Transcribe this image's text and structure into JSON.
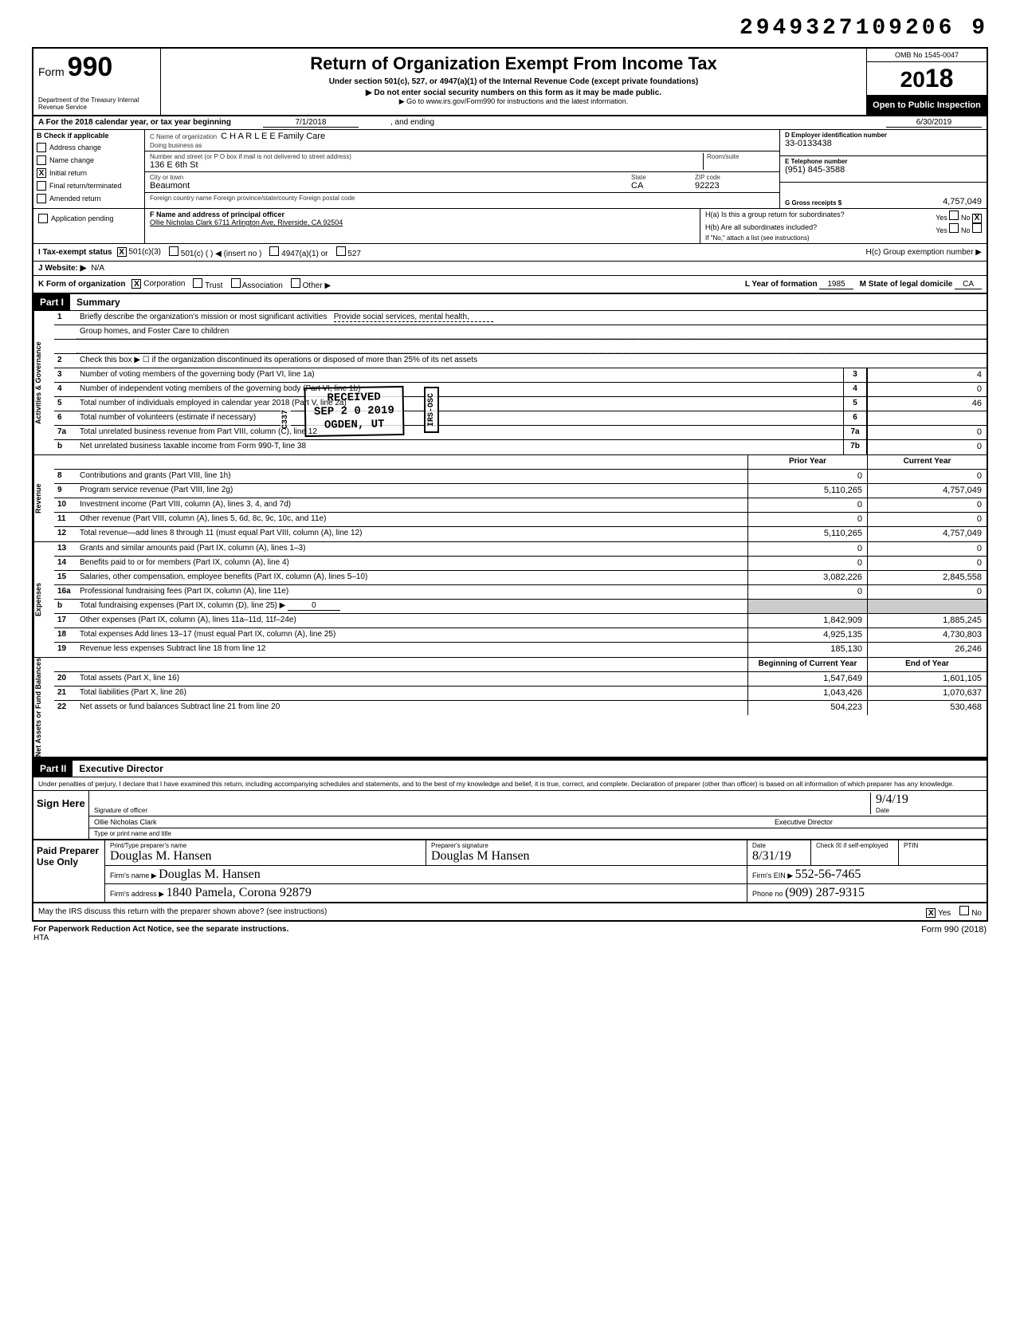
{
  "doc_id": "2949327109206 9",
  "header": {
    "form_prefix": "Form",
    "form_number": "990",
    "dept": "Department of the Treasury\nInternal Revenue Service",
    "title": "Return of Organization Exempt From Income Tax",
    "subtitle": "Under section 501(c), 527, or 4947(a)(1) of the Internal Revenue Code (except private foundations)",
    "note1": "▶ Do not enter social security numbers on this form as it may be made public.",
    "note2": "▶ Go to www.irs.gov/Form990 for instructions and the latest information.",
    "omb": "OMB No 1545-0047",
    "year_prefix": "20",
    "year": "18",
    "open": "Open to Public Inspection"
  },
  "rowA": {
    "label": "A  For the 2018 calendar year, or tax year beginning",
    "begin": "7/1/2018",
    "mid": ", and ending",
    "end": "6/30/2019"
  },
  "B": {
    "label": "B  Check if applicable",
    "items": [
      "Address change",
      "Name change",
      "Initial return",
      "Final return/terminated",
      "Amended return",
      "Application pending"
    ],
    "checked_idx": 2
  },
  "C": {
    "name_label": "C  Name of organization",
    "name": "C H A R L E E Family Care",
    "dba_label": "Doing business as",
    "dba": "",
    "addr_label": "Number and street (or P O box if mail is not delivered to street address)",
    "addr": "136 E 6th St",
    "room_label": "Room/suite",
    "city_label": "City or town",
    "city": "Beaumont",
    "state_label": "State",
    "state": "CA",
    "zip_label": "ZIP code",
    "zip": "92223",
    "foreign_label": "Foreign country name          Foreign province/state/county          Foreign postal code"
  },
  "D": {
    "label": "D  Employer identification number",
    "value": "33-0133438"
  },
  "E": {
    "label": "E  Telephone number",
    "value": "(951) 845-3588"
  },
  "G": {
    "label": "G  Gross receipts $",
    "value": "4,757,049"
  },
  "F": {
    "label": "F  Name and address of principal officer",
    "value": "Ollie Nicholas Clark 6711 Arlington Ave, Riverside, CA  92504"
  },
  "H": {
    "a": "H(a) Is this a group return for subordinates?",
    "a_yes": "Yes",
    "a_no": "No",
    "a_checked": "No",
    "b": "H(b) Are all subordinates included?",
    "b_yes": "Yes",
    "b_no": "No",
    "b_note": "If \"No,\" attach a list (see instructions)",
    "c": "H(c) Group exemption number ▶"
  },
  "I": {
    "label": "I  Tax-exempt status",
    "opts": [
      "501(c)(3)",
      "501(c) (    ) ◀ (insert no )",
      "4947(a)(1) or",
      "527"
    ],
    "checked_idx": 0
  },
  "J": {
    "label": "J  Website: ▶",
    "value": "N/A"
  },
  "K": {
    "label": "K  Form of organization",
    "opts": [
      "Corporation",
      "Trust",
      "Association",
      "Other ▶"
    ],
    "checked_idx": 0
  },
  "L": {
    "label": "L Year of formation",
    "value": "1985"
  },
  "M": {
    "label": "M State of legal domicile",
    "value": "CA"
  },
  "part1": {
    "hdr": "Part I",
    "title": "Summary",
    "sections": [
      {
        "side": "Activities & Governance",
        "lines": [
          {
            "n": "1",
            "d": "Briefly describe the organization's mission or most significant activities",
            "tail": "Provide social services, mental health,",
            "extra": "Group homes, and Foster Care to children"
          },
          {
            "n": "2",
            "d": "Check this box ▶ ☐ if the organization discontinued its operations or disposed of more than 25% of its net assets"
          },
          {
            "n": "3",
            "d": "Number of voting members of the governing body (Part VI, line 1a)",
            "box": "3",
            "cur": "4"
          },
          {
            "n": "4",
            "d": "Number of independent voting members of the governing body (Part VI, line 1b)",
            "box": "4",
            "cur": "0"
          },
          {
            "n": "5",
            "d": "Total number of individuals employed in calendar year 2018 (Part V, line 2a)",
            "box": "5",
            "cur": "46"
          },
          {
            "n": "6",
            "d": "Total number of volunteers (estimate if necessary)",
            "box": "6",
            "cur": ""
          },
          {
            "n": "7a",
            "d": "Total unrelated business revenue from Part VIII, column (C), line 12",
            "box": "7a",
            "cur": "0"
          },
          {
            "n": "b",
            "d": "Net unrelated business taxable income from Form 990-T, line 38",
            "box": "7b",
            "cur": "0"
          }
        ]
      },
      {
        "side": "Revenue",
        "hdr_prior": "Prior Year",
        "hdr_cur": "Current Year",
        "lines": [
          {
            "n": "8",
            "d": "Contributions and grants (Part VIII, line 1h)",
            "p": "0",
            "c": "0"
          },
          {
            "n": "9",
            "d": "Program service revenue (Part VIII, line 2g)",
            "p": "5,110,265",
            "c": "4,757,049"
          },
          {
            "n": "10",
            "d": "Investment income (Part VIII, column (A), lines 3, 4, and 7d)",
            "p": "0",
            "c": "0"
          },
          {
            "n": "11",
            "d": "Other revenue (Part VIII, column (A), lines 5, 6d, 8c, 9c, 10c, and 11e)",
            "p": "0",
            "c": "0"
          },
          {
            "n": "12",
            "d": "Total revenue—add lines 8 through 11 (must equal Part VIII, column (A), line 12)",
            "p": "5,110,265",
            "c": "4,757,049"
          }
        ]
      },
      {
        "side": "Expenses",
        "lines": [
          {
            "n": "13",
            "d": "Grants and similar amounts paid (Part IX, column (A), lines 1–3)",
            "p": "0",
            "c": "0"
          },
          {
            "n": "14",
            "d": "Benefits paid to or for members (Part IX, column (A), line 4)",
            "p": "0",
            "c": "0"
          },
          {
            "n": "15",
            "d": "Salaries, other compensation, employee benefits (Part IX, column (A), lines 5–10)",
            "p": "3,082,226",
            "c": "2,845,558"
          },
          {
            "n": "16a",
            "d": "Professional fundraising fees (Part IX, column (A), line 11e)",
            "p": "0",
            "c": "0"
          },
          {
            "n": "b",
            "d": "Total fundraising expenses (Part IX, column (D), line 25) ▶",
            "inline": "0",
            "p_shade": true,
            "c_shade": true
          },
          {
            "n": "17",
            "d": "Other expenses (Part IX, column (A), lines 11a–11d, 11f–24e)",
            "p": "1,842,909",
            "c": "1,885,245"
          },
          {
            "n": "18",
            "d": "Total expenses Add lines 13–17 (must equal Part IX, column (A), line 25)",
            "p": "4,925,135",
            "c": "4,730,803"
          },
          {
            "n": "19",
            "d": "Revenue less expenses Subtract line 18 from line 12",
            "p": "185,130",
            "c": "26,246"
          }
        ]
      },
      {
        "side": "Net Assets or Fund Balances",
        "hdr_prior": "Beginning of Current Year",
        "hdr_cur": "End of Year",
        "lines": [
          {
            "n": "20",
            "d": "Total assets (Part X, line 16)",
            "p": "1,547,649",
            "c": "1,601,105"
          },
          {
            "n": "21",
            "d": "Total liabilities (Part X, line 26)",
            "p": "1,043,426",
            "c": "1,070,637"
          },
          {
            "n": "22",
            "d": "Net assets or fund balances Subtract line 21 from line 20",
            "p": "504,223",
            "c": "530,468"
          }
        ]
      }
    ],
    "stamps": {
      "received": "RECEIVED",
      "date": "SEP 2 0 2019",
      "loc": "OGDEN, UT",
      "side": "IRS-OSC",
      "code": "C337"
    }
  },
  "part2": {
    "hdr": "Part II",
    "title": "Executive Director",
    "decl": "Under penalties of perjury, I declare that I have examined this return, including accompanying schedules and statements, and to the best of my knowledge and belief, it is true, correct, and complete. Declaration of preparer (other than officer) is based on all information of which preparer has any knowledge.",
    "sign_here": "Sign Here",
    "sig_label": "Signature of officer",
    "date_label": "Date",
    "date_val": "9/4/19",
    "name": "Ollie Nicholas Clark",
    "name_label": "Type or print name and title"
  },
  "preparer": {
    "label": "Paid Preparer Use Only",
    "cols": [
      "Print/Type preparer's name",
      "Preparer's signature",
      "Date",
      "Check ☒ if self-employed",
      "PTIN"
    ],
    "name": "Douglas M. Hansen",
    "sig": "Douglas M Hansen",
    "date": "8/31/19",
    "firm_label": "Firm's name ▶",
    "firm": "Douglas M. Hansen",
    "ein_label": "Firm's EIN ▶",
    "ein": "552-56-7465",
    "addr_label": "Firm's address ▶",
    "addr": "1840 Pamela, Corona 92879",
    "phone_label": "Phone no",
    "phone": "(909) 287-9315"
  },
  "footer": {
    "q": "May the IRS discuss this return with the preparer shown above? (see instructions)",
    "yes": "Yes",
    "no": "No",
    "checked": "Yes",
    "paperwork": "For Paperwork Reduction Act Notice, see the separate instructions.",
    "hta": "HTA",
    "form": "Form 990 (2018)"
  }
}
